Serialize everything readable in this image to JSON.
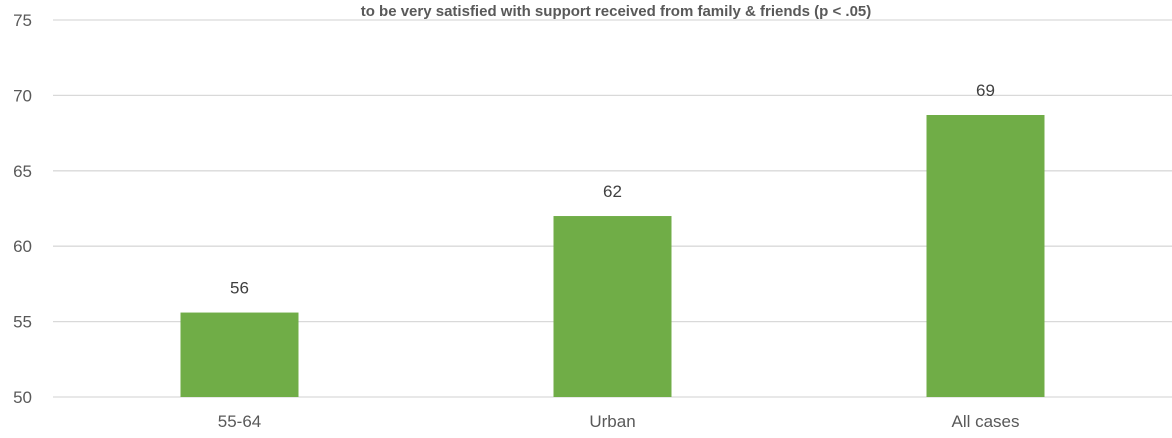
{
  "chart_data": {
    "type": "bar",
    "title": "to be very satisfied with support received from family & friends (p < .05)",
    "categories": [
      "55-64",
      "Urban",
      "All cases"
    ],
    "values": [
      55.6,
      62,
      68.7
    ],
    "data_labels": [
      "56",
      "62",
      "69"
    ],
    "ylim": [
      50,
      75
    ],
    "yticks": [
      50,
      55,
      60,
      65,
      70,
      75
    ],
    "xlabel": "",
    "ylabel": "",
    "grid": true,
    "bar_color": "#70AD47",
    "grid_color": "#D9D9D9"
  }
}
